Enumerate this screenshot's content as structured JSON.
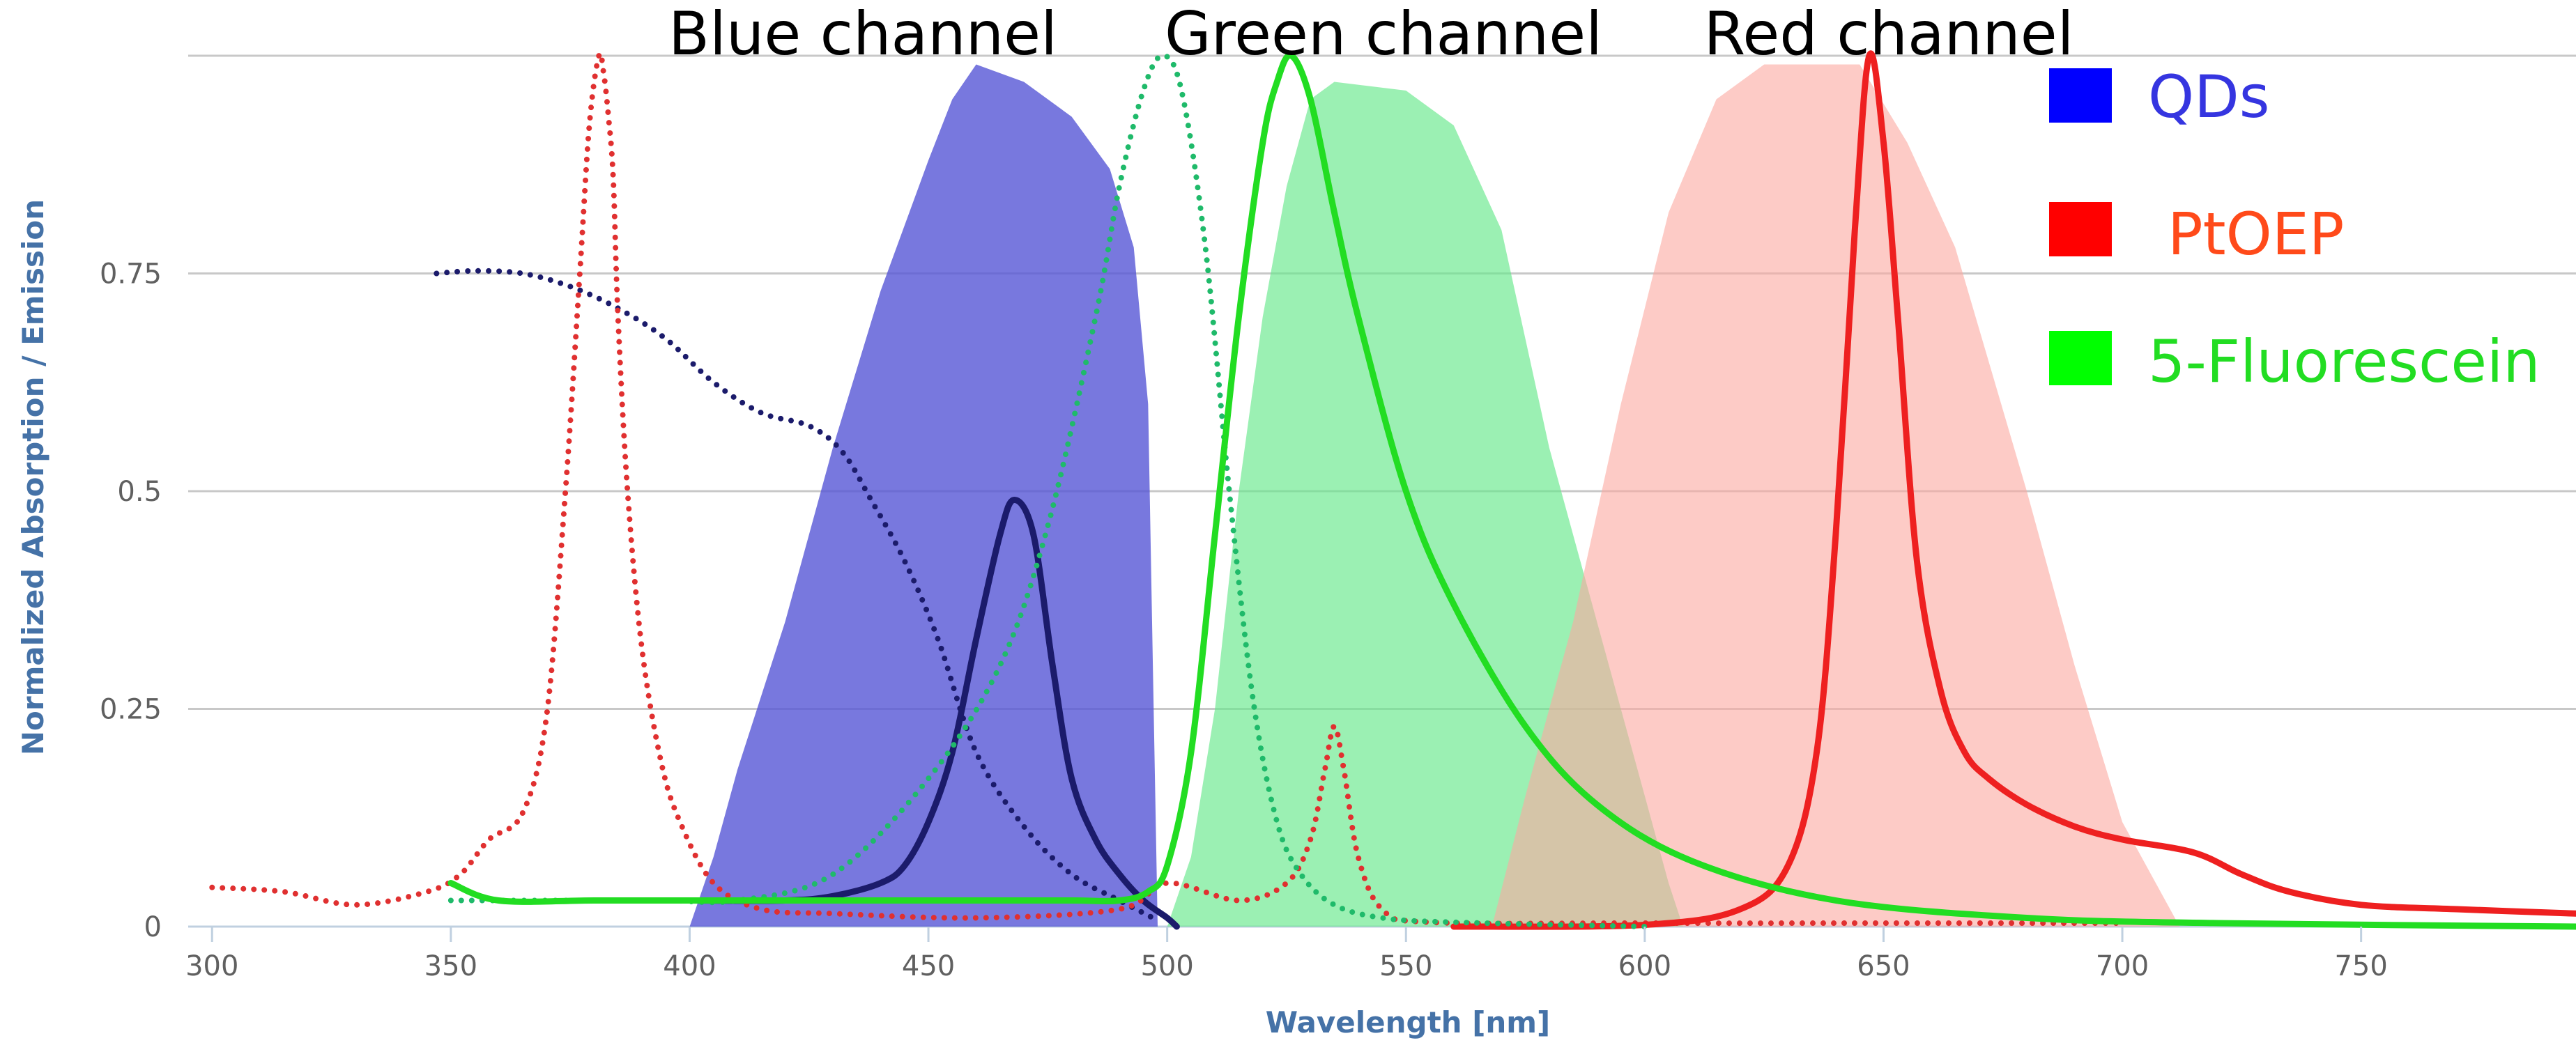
{
  "chart_data": {
    "type": "line",
    "xlabel": "Wavelength [nm]",
    "ylabel": "Normalized Absorption / Emission",
    "xlim": [
      295,
      795
    ],
    "ylim": [
      0,
      1.0
    ],
    "x_ticks": [
      300,
      350,
      400,
      450,
      500,
      550,
      600,
      650,
      700,
      750
    ],
    "y_ticks": [
      0,
      0.25,
      0.5,
      0.75
    ],
    "y_tick_labels": [
      "0",
      "0.25",
      "0.5",
      "0.75"
    ],
    "grid": true,
    "channels": [
      {
        "label": "Blue channel",
        "color": "#5a5ad8",
        "points": [
          [
            400,
            0
          ],
          [
            405,
            0.08
          ],
          [
            410,
            0.18
          ],
          [
            420,
            0.35
          ],
          [
            430,
            0.55
          ],
          [
            440,
            0.73
          ],
          [
            450,
            0.88
          ],
          [
            455,
            0.95
          ],
          [
            460,
            0.99
          ],
          [
            470,
            0.97
          ],
          [
            480,
            0.93
          ],
          [
            488,
            0.87
          ],
          [
            493,
            0.78
          ],
          [
            496,
            0.6
          ],
          [
            497,
            0.3
          ],
          [
            498,
            0
          ]
        ]
      },
      {
        "label": "Green channel",
        "color": "#7de89c",
        "points": [
          [
            500,
            0
          ],
          [
            505,
            0.08
          ],
          [
            510,
            0.25
          ],
          [
            515,
            0.5
          ],
          [
            520,
            0.7
          ],
          [
            525,
            0.85
          ],
          [
            530,
            0.95
          ],
          [
            535,
            0.97
          ],
          [
            550,
            0.96
          ],
          [
            560,
            0.92
          ],
          [
            570,
            0.8
          ],
          [
            580,
            0.55
          ],
          [
            590,
            0.35
          ],
          [
            600,
            0.15
          ],
          [
            605,
            0.05
          ],
          [
            608,
            0
          ]
        ]
      },
      {
        "label": "Red channel",
        "color": "#fcb8b0",
        "points": [
          [
            568,
            0
          ],
          [
            575,
            0.15
          ],
          [
            585,
            0.35
          ],
          [
            595,
            0.6
          ],
          [
            605,
            0.82
          ],
          [
            615,
            0.95
          ],
          [
            625,
            0.99
          ],
          [
            645,
            0.99
          ],
          [
            655,
            0.9
          ],
          [
            665,
            0.78
          ],
          [
            680,
            0.5
          ],
          [
            690,
            0.3
          ],
          [
            700,
            0.12
          ],
          [
            710,
            0.02
          ],
          [
            712,
            0
          ]
        ]
      }
    ],
    "legend": {
      "placement": "top-right",
      "entries": [
        {
          "name": "QDs",
          "swatch_color": "#0000ff",
          "text_color": "#3535e0"
        },
        {
          "name": "PtOEP",
          "swatch_color": "#ff0000",
          "text_color": "#ff4a1a"
        },
        {
          "name": "5-Fluorescein",
          "swatch_color": "#00ff00",
          "text_color": "#22dd22"
        }
      ]
    },
    "series": [
      {
        "id": "qd-absorption",
        "color": "#1b1b6b",
        "style": "dotted",
        "x": [
          347,
          355,
          365,
          375,
          385,
          395,
          405,
          415,
          425,
          432,
          438,
          445,
          452,
          460,
          470,
          480,
          490,
          497
        ],
        "y": [
          0.75,
          0.753,
          0.75,
          0.735,
          0.71,
          0.675,
          0.625,
          0.59,
          0.575,
          0.545,
          0.49,
          0.42,
          0.33,
          0.2,
          0.115,
          0.06,
          0.03,
          0.01
        ]
      },
      {
        "id": "qd-emission",
        "color": "#1b1b6b",
        "style": "solid",
        "x": [
          400,
          420,
          430,
          440,
          445,
          450,
          455,
          460,
          465,
          468,
          472,
          476,
          480,
          485,
          490,
          495,
          500,
          502
        ],
        "y": [
          0.03,
          0.03,
          0.035,
          0.05,
          0.07,
          0.12,
          0.2,
          0.33,
          0.45,
          0.49,
          0.45,
          0.3,
          0.17,
          0.1,
          0.06,
          0.03,
          0.01,
          0.0
        ]
      },
      {
        "id": "ptoep-absorption",
        "color": "#e03030",
        "style": "dotted",
        "x": [
          300,
          315,
          330,
          345,
          352,
          358,
          365,
          370,
          374,
          377,
          379,
          381,
          382,
          383,
          384,
          385,
          387,
          390,
          394,
          398,
          405,
          415,
          430,
          460,
          490,
          500,
          515,
          525,
          530,
          533,
          535,
          537,
          540,
          545,
          555,
          600,
          650,
          700
        ],
        "y": [
          0.045,
          0.04,
          0.025,
          0.04,
          0.06,
          0.1,
          0.13,
          0.24,
          0.5,
          0.75,
          0.92,
          1.0,
          0.98,
          0.93,
          0.86,
          0.7,
          0.5,
          0.32,
          0.19,
          0.12,
          0.05,
          0.02,
          0.015,
          0.01,
          0.02,
          0.05,
          0.03,
          0.05,
          0.1,
          0.18,
          0.23,
          0.18,
          0.08,
          0.02,
          0.005,
          0.004,
          0.004,
          0.004
        ]
      },
      {
        "id": "ptoep-emission",
        "color": "#ee2020",
        "style": "solid",
        "x": [
          560,
          600,
          620,
          630,
          636,
          640,
          644,
          647,
          650,
          653,
          657,
          662,
          667,
          672,
          680,
          690,
          700,
          715,
          725,
          735,
          750,
          770,
          795
        ],
        "y": [
          0.0,
          0.002,
          0.02,
          0.07,
          0.2,
          0.45,
          0.8,
          1.0,
          0.9,
          0.7,
          0.42,
          0.27,
          0.2,
          0.17,
          0.14,
          0.115,
          0.1,
          0.085,
          0.06,
          0.04,
          0.025,
          0.02,
          0.015
        ]
      },
      {
        "id": "fluorescein-absorption",
        "color": "#1fba6a",
        "style": "dotted",
        "x": [
          350,
          375,
          395,
          410,
          430,
          450,
          465,
          475,
          485,
          490,
          495,
          499,
          503,
          508,
          513,
          518,
          523,
          528,
          535,
          545,
          560,
          600
        ],
        "y": [
          0.03,
          0.03,
          0.03,
          0.03,
          0.06,
          0.17,
          0.3,
          0.46,
          0.7,
          0.85,
          0.96,
          1.0,
          0.96,
          0.78,
          0.5,
          0.26,
          0.12,
          0.06,
          0.025,
          0.01,
          0.005,
          0.0
        ]
      },
      {
        "id": "fluorescein-emission",
        "color": "#22dd22",
        "style": "solid",
        "x": [
          350,
          360,
          380,
          400,
          420,
          440,
          460,
          480,
          490,
          496,
          500,
          505,
          510,
          515,
          520,
          523,
          526,
          530,
          535,
          540,
          550,
          560,
          575,
          590,
          610,
          640,
          680,
          720,
          795
        ],
        "y": [
          0.05,
          0.03,
          0.03,
          0.03,
          0.03,
          0.03,
          0.03,
          0.03,
          0.03,
          0.04,
          0.07,
          0.2,
          0.45,
          0.7,
          0.9,
          0.97,
          1.0,
          0.95,
          0.82,
          0.7,
          0.5,
          0.37,
          0.23,
          0.14,
          0.075,
          0.03,
          0.01,
          0.004,
          0.0
        ]
      }
    ]
  }
}
